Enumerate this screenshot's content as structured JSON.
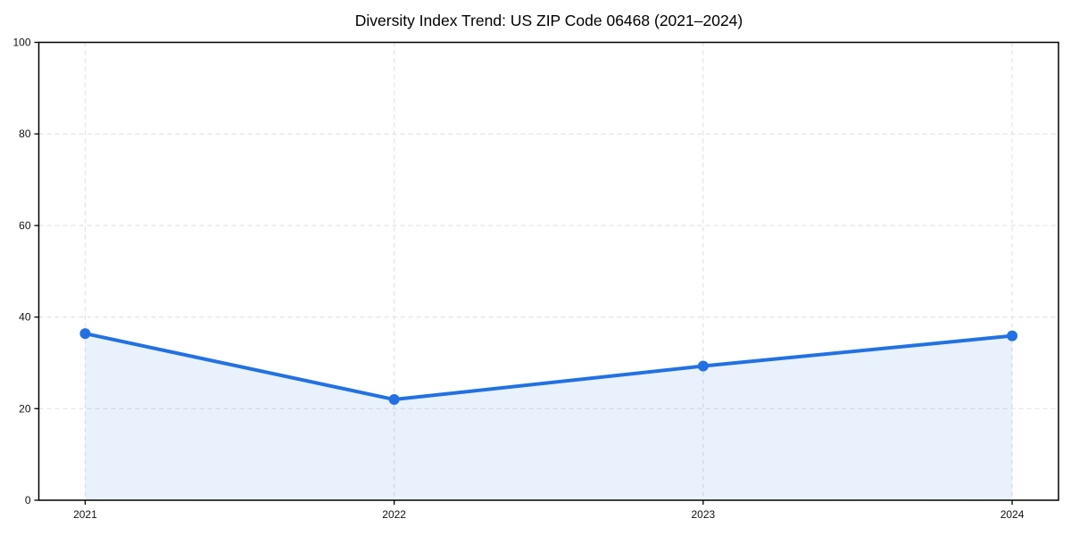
{
  "chart_data": {
    "type": "line",
    "title": "Diversity Index Trend: US ZIP Code 06468 (2021–2024)",
    "x": [
      2021,
      2022,
      2023,
      2024
    ],
    "xticks": [
      "2021",
      "2022",
      "2023",
      "2024"
    ],
    "series": [
      {
        "name": "Diversity Index",
        "values": [
          36.4,
          22.0,
          29.3,
          35.9
        ]
      }
    ],
    "xlabel": "",
    "ylabel": "",
    "ylim": [
      0,
      100
    ],
    "yticks": [
      0,
      20,
      40,
      60,
      80,
      100
    ],
    "grid": true,
    "grid_style": "dashed",
    "legend_position": "none",
    "area_fill": true,
    "marker": "circle",
    "colors": {
      "line": "#2271e3",
      "marker": "#2271e3",
      "area_fill": "rgba(34,113,227,0.10)",
      "grid": "#e3e3e3",
      "axis": "#000000",
      "text": "#111111",
      "background": "#ffffff"
    }
  }
}
